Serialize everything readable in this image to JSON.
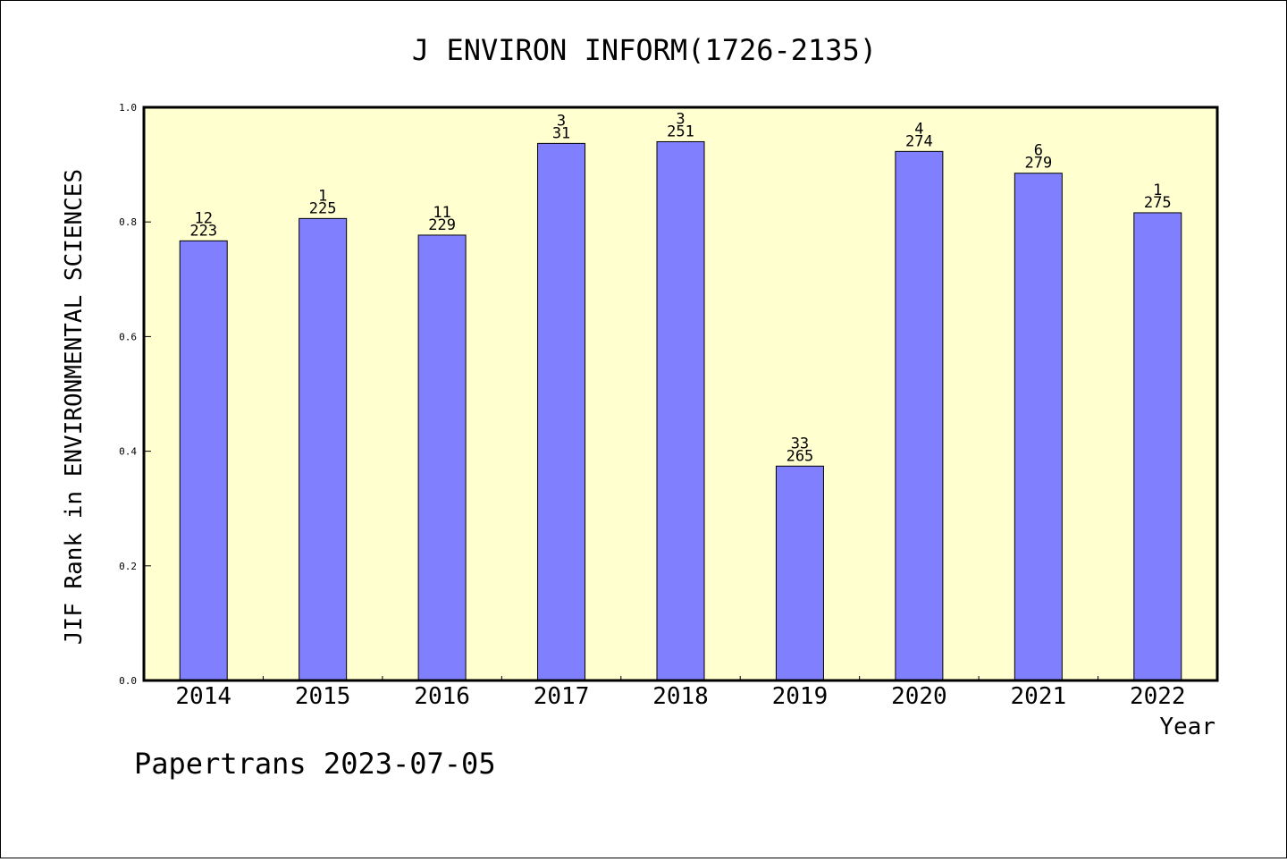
{
  "chart_data": {
    "type": "bar",
    "title": "J ENVIRON INFORM(1726-2135)",
    "xlabel": "Year",
    "ylabel": "JIF Rank in ENVIRONMENTAL SCIENCES",
    "ylim": [
      0,
      1
    ],
    "yticks": [
      "0.0",
      "0.2",
      "0.4",
      "0.6",
      "0.8",
      "1.0"
    ],
    "categories": [
      "2014",
      "2015",
      "2016",
      "2017",
      "2018",
      "2019",
      "2020",
      "2021",
      "2022"
    ],
    "values": [
      0.767,
      0.806,
      0.777,
      0.937,
      0.94,
      0.374,
      0.923,
      0.885,
      0.816
    ],
    "bar_labels": [
      {
        "rank": "12",
        "total": "223"
      },
      {
        "rank": "1",
        "total": "225"
      },
      {
        "rank": "11",
        "total": "229"
      },
      {
        "rank": "3",
        "total": "31"
      },
      {
        "rank": "3",
        "total": "251"
      },
      {
        "rank": "33",
        "total": "265"
      },
      {
        "rank": "4",
        "total": "274"
      },
      {
        "rank": "6",
        "total": "279"
      },
      {
        "rank": "1",
        "total": "275"
      }
    ],
    "grid": false,
    "colors": {
      "plot_bg": "#ffffd0",
      "bar": "#8080ff"
    }
  },
  "footer": "Papertrans 2023-07-05"
}
